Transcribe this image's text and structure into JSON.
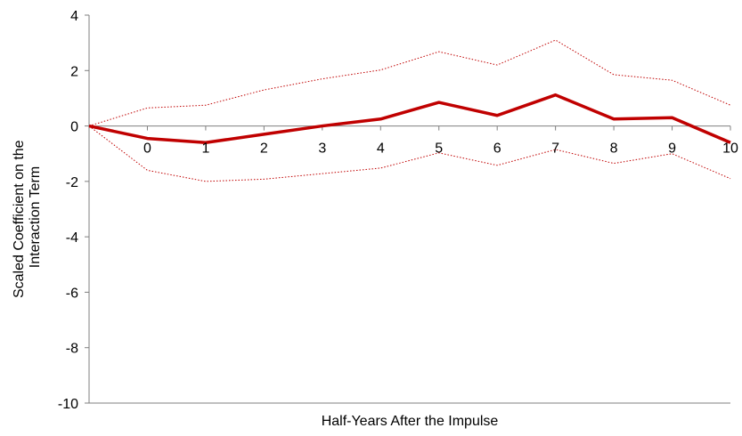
{
  "chart_data": {
    "type": "line",
    "xlabel": "Half-Years After the Impulse",
    "ylabel_lines": [
      "Scaled Coefficient on the",
      "Interaction Term"
    ],
    "ylim": [
      -10,
      4
    ],
    "yticks": [
      4,
      2,
      0,
      -2,
      -4,
      -6,
      -8,
      -10
    ],
    "x": [
      -1,
      0,
      1,
      2,
      3,
      4,
      5,
      6,
      7,
      8,
      9,
      10
    ],
    "xtick_labels": [
      "0",
      "1",
      "2",
      "3",
      "4",
      "5",
      "6",
      "7",
      "8",
      "9",
      "10"
    ],
    "grid": false,
    "legend": "none",
    "series": [
      {
        "role": "estimate",
        "style": "solid",
        "color": "#C00000",
        "values": [
          0,
          -0.45,
          -0.6,
          -0.3,
          0.0,
          0.25,
          0.85,
          0.38,
          1.12,
          0.25,
          0.3,
          -0.6
        ]
      },
      {
        "role": "upper-band",
        "style": "dotted",
        "color": "#C00000",
        "values": [
          0,
          0.65,
          0.75,
          1.3,
          1.7,
          2.02,
          2.68,
          2.2,
          3.1,
          1.85,
          1.65,
          0.75
        ]
      },
      {
        "role": "lower-band",
        "style": "dotted",
        "color": "#C00000",
        "values": [
          0,
          -1.6,
          -2.0,
          -1.92,
          -1.72,
          -1.52,
          -0.97,
          -1.42,
          -0.85,
          -1.35,
          -1.0,
          -1.9
        ]
      }
    ]
  }
}
